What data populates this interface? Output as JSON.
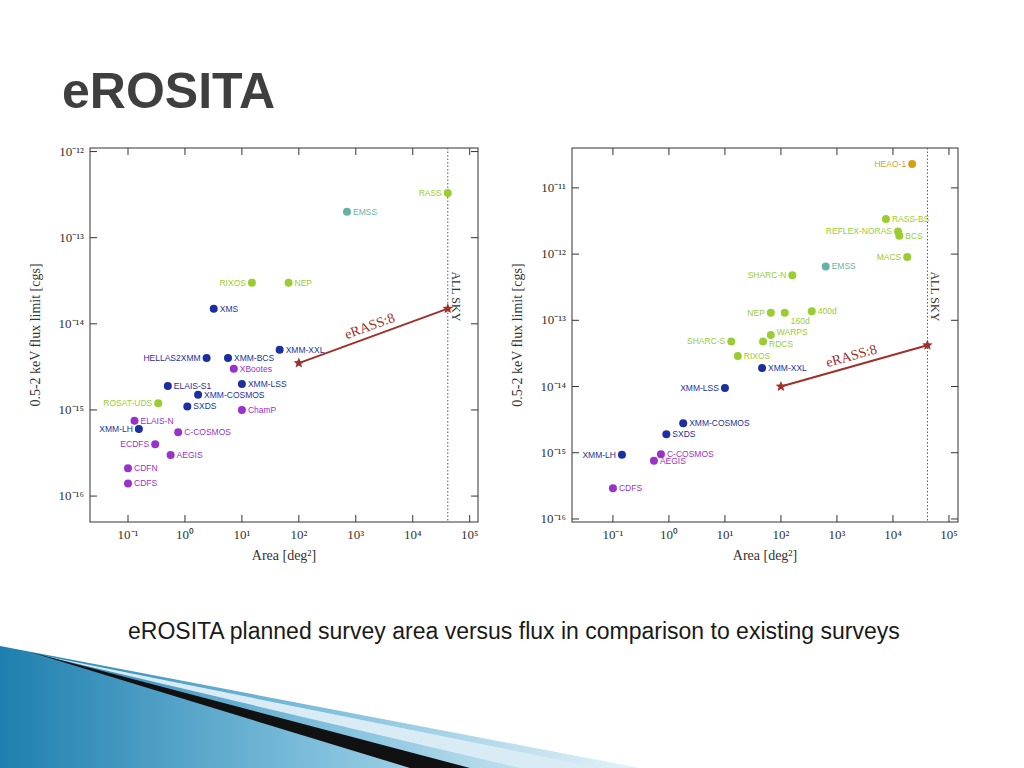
{
  "slide": {
    "title": "eROSITA",
    "caption": "eROSITA planned survey area versus flux in comparison to existing surveys"
  },
  "chart_data": [
    {
      "type": "scatter",
      "xlabel": "Area [deg²]",
      "ylabel": "0.5-2 keV flux limit [cgs]",
      "log": true,
      "xlim": [
        0.0215,
        140000
      ],
      "ylim": [
        5e-17,
        1.1e-12
      ],
      "xticks": [
        {
          "value": 0.1,
          "label": "10⁻¹"
        },
        {
          "value": 1,
          "label": "10⁰"
        },
        {
          "value": 10,
          "label": "10¹"
        },
        {
          "value": 100,
          "label": "10²"
        },
        {
          "value": 1000,
          "label": "10³"
        },
        {
          "value": 10000,
          "label": "10⁴"
        },
        {
          "value": 100000,
          "label": "10⁵"
        }
      ],
      "yticks": [
        {
          "value": 1e-16,
          "label": "10⁻¹⁶"
        },
        {
          "value": 1e-15,
          "label": "10⁻¹⁵"
        },
        {
          "value": 1e-14,
          "label": "10⁻¹⁴"
        },
        {
          "value": 1e-13,
          "label": "10⁻¹³"
        },
        {
          "value": 1e-12,
          "label": "10⁻¹²"
        }
      ],
      "series": [
        {
          "type": "scatter",
          "marker": "circle",
          "labels": [
            "RASS",
            "EMSS",
            "RIXOS",
            "NEP",
            "XMS",
            "XMM-XXL",
            "HELLAS2XMM",
            "XMM-BCS",
            "XBootes",
            "ELAIS-S1",
            "XMM-LSS",
            "XMM-COSMOS",
            "ROSAT-UDS",
            "SXDS",
            "ChamP",
            "ELAIS-N",
            "XMM-LH",
            "C-COSMOS",
            "ECDFS",
            "AEGIS",
            "CDFN",
            "CDFS"
          ],
          "x": [
            41253,
            700,
            15,
            66,
            3.2,
            46,
            2.4,
            5.7,
            7.2,
            0.5,
            10,
            1.7,
            0.34,
            1.1,
            10,
            0.13,
            0.155,
            0.76,
            0.3,
            0.56,
            0.1,
            0.1
          ],
          "values": [
            3.3e-13,
            2e-13,
            3e-14,
            3e-14,
            1.5e-14,
            5e-15,
            4e-15,
            4e-15,
            3e-15,
            1.9e-15,
            2e-15,
            1.5e-15,
            1.2e-15,
            1.1e-15,
            1e-15,
            7.5e-16,
            6e-16,
            5.5e-16,
            4e-16,
            3e-16,
            2.1e-16,
            1.4e-16
          ],
          "colors": [
            "#9acd32",
            "#66b3a6",
            "#9acd32",
            "#9acd32",
            "#1c2f9e",
            "#1c2f9e",
            "#1c2f9e",
            "#1c2f9e",
            "#9932cc",
            "#1c2f9e",
            "#1c2f9e",
            "#1c2f9e",
            "#9acd32",
            "#1c2f9e",
            "#9932cc",
            "#9932cc",
            "#1c2f9e",
            "#9932cc",
            "#9932cc",
            "#9932cc",
            "#9932cc",
            "#9932cc"
          ]
        },
        {
          "name": "eRASS:8",
          "type": "line",
          "marker": "star",
          "color": "#a0302a",
          "x": [
            100,
            41253
          ],
          "values": [
            3.5e-15,
            1.5e-14
          ]
        }
      ],
      "annotations": [
        {
          "text": "ALL SKY",
          "x": 41253
        }
      ]
    },
    {
      "type": "scatter",
      "xlabel": "Area [deg²]",
      "ylabel": "0.5-2 keV flux limit [cgs]",
      "log": true,
      "xlim": [
        0.0186,
        145000
      ],
      "ylim": [
        9e-17,
        4e-11
      ],
      "xticks": [
        {
          "value": 0.1,
          "label": "10⁻¹"
        },
        {
          "value": 1,
          "label": "10⁰"
        },
        {
          "value": 10,
          "label": "10¹"
        },
        {
          "value": 100,
          "label": "10²"
        },
        {
          "value": 1000,
          "label": "10³"
        },
        {
          "value": 10000,
          "label": "10⁴"
        },
        {
          "value": 100000,
          "label": "10⁵"
        }
      ],
      "yticks": [
        {
          "value": 1e-16,
          "label": "10⁻¹⁶"
        },
        {
          "value": 1e-15,
          "label": "10⁻¹⁵"
        },
        {
          "value": 1e-14,
          "label": "10⁻¹⁴"
        },
        {
          "value": 1e-13,
          "label": "10⁻¹³"
        },
        {
          "value": 1e-12,
          "label": "10⁻¹²"
        },
        {
          "value": 1e-11,
          "label": "10⁻¹¹"
        }
      ],
      "series": [
        {
          "type": "scatter",
          "marker": "circle",
          "labels": [
            "HEAO-1",
            "RASS-BS",
            "REFLEX-NORAS",
            "BCS",
            "MACS",
            "SHARC-N",
            "EMSS",
            "NEP",
            "160d",
            "400d",
            "WARPS",
            "SHARC-S",
            "RDCS",
            "RIXOS",
            "XMM-XXL",
            "XMM-LSS",
            "XMM-COSMOS",
            "SXDS",
            "XMM-LH",
            "C-COSMOS",
            "AEGIS",
            "CDFS"
          ],
          "x": [
            22000,
            7500,
            12300,
            13000,
            18000,
            160,
            630,
            66,
            117,
            355,
            66,
            13,
            48,
            17,
            46,
            10,
            1.8,
            0.9,
            0.145,
            0.72,
            0.54,
            0.1
          ],
          "values": [
            2.3e-11,
            3.4e-12,
            2.2e-12,
            1.9e-12,
            9e-13,
            4.8e-13,
            6.5e-13,
            1.3e-13,
            1.3e-13,
            1.37e-13,
            6e-14,
            4.8e-14,
            4.8e-14,
            2.9e-14,
            1.9e-14,
            9.5e-15,
            2.8e-15,
            1.9e-15,
            9.3e-16,
            9.5e-16,
            7.6e-16,
            2.9e-16
          ],
          "colors": [
            "#d4a017",
            "#9acd32",
            "#9acd32",
            "#9acd32",
            "#9acd32",
            "#9acd32",
            "#66b3a6",
            "#9acd32",
            "#9acd32",
            "#9acd32",
            "#9acd32",
            "#9acd32",
            "#9acd32",
            "#9acd32",
            "#1c2f9e",
            "#1c2f9e",
            "#1c2f9e",
            "#1c2f9e",
            "#1c2f9e",
            "#9932cc",
            "#9932cc",
            "#9932cc"
          ]
        },
        {
          "name": "eRASS:8",
          "type": "line",
          "marker": "star",
          "color": "#a0302a",
          "x": [
            100,
            41253
          ],
          "values": [
            1e-14,
            4.2e-14
          ]
        }
      ],
      "annotations": [
        {
          "text": "ALL SKY",
          "x": 41253
        }
      ]
    }
  ]
}
